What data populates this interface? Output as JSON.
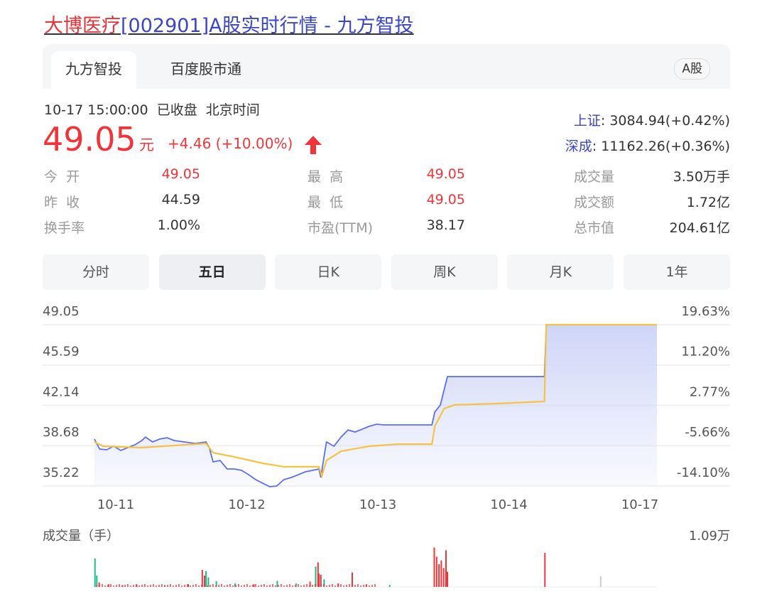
{
  "title": {
    "name": "大博医疗",
    "rest": "[002901]A股实时行情 - 九方智投"
  },
  "source_tabs": [
    {
      "label": "九方智投",
      "active": true
    },
    {
      "label": "百度股市通",
      "active": false
    }
  ],
  "market_badge": "A股",
  "quote": {
    "datetime": "10-17 15:00:00",
    "status": "已收盘",
    "timezone": "北京时间",
    "price": "49.05",
    "unit": "元",
    "change": "+4.46 (+10.00%)",
    "direction_icon": "arrow-up-icon"
  },
  "indices": [
    {
      "name": "上证",
      "value": ": 3084.94(+0.42%)"
    },
    {
      "name": "深成",
      "value": ": 11162.26(+0.36%)"
    }
  ],
  "stats": [
    [
      {
        "label": "今  开",
        "value": "49.05",
        "red": true
      },
      {
        "label": "最  高",
        "value": "49.05",
        "red": true
      },
      {
        "label": "成交量",
        "value": "3.50万手"
      }
    ],
    [
      {
        "label": "昨  收",
        "value": "44.59"
      },
      {
        "label": "最  低",
        "value": "49.05",
        "red": true
      },
      {
        "label": "成交额",
        "value": "1.72亿"
      }
    ],
    [
      {
        "label": "换手率",
        "value": "1.00%"
      },
      {
        "label": "市盈(TTM)",
        "value": "38.17"
      },
      {
        "label": "总市值",
        "value": "204.61亿"
      }
    ]
  ],
  "period_tabs": [
    {
      "label": "分时"
    },
    {
      "label": "五日",
      "active": true
    },
    {
      "label": "日K"
    },
    {
      "label": "周K"
    },
    {
      "label": "月K"
    },
    {
      "label": "1年"
    }
  ],
  "colors": {
    "price_line": "#5b6ef0",
    "avg_line": "#f5c242",
    "up": "#f0353a",
    "down": "#1fb98c",
    "fill": "#c9d1f7"
  },
  "chart_data": {
    "type": "line",
    "days": [
      "10-11",
      "10-12",
      "10-13",
      "10-14",
      "10-17"
    ],
    "y_ticks": [
      "49.05",
      "45.59",
      "42.14",
      "38.68",
      "35.22"
    ],
    "y_right_ticks": [
      "19.63%",
      "11.20%",
      "2.77%",
      "-5.66%",
      "-14.10%"
    ],
    "ylim": [
      35.22,
      49.05
    ],
    "grid": true,
    "series": [
      {
        "key": "price",
        "points": [
          [
            "10-11",
            "09:30",
            39.24
          ],
          [
            "10-11",
            "09:41",
            38.39
          ],
          [
            "10-11",
            "09:56",
            38.33
          ],
          [
            "10-11",
            "10:11",
            38.63
          ],
          [
            "10-11",
            "10:26",
            38.27
          ],
          [
            "10-11",
            "10:41",
            38.51
          ],
          [
            "10-11",
            "10:56",
            38.75
          ],
          [
            "10-11",
            "11:11",
            39.12
          ],
          [
            "10-11",
            "11:19",
            39.42
          ],
          [
            "10-11",
            "13:04",
            39.0
          ],
          [
            "10-11",
            "13:19",
            39.24
          ],
          [
            "10-11",
            "13:35",
            39.36
          ],
          [
            "10-11",
            "13:50",
            39.12
          ],
          [
            "10-11",
            "14:12",
            39.0
          ],
          [
            "10-11",
            "14:35",
            38.87
          ],
          [
            "10-11",
            "14:58",
            39.0
          ],
          [
            "10-12",
            "09:35",
            38.51
          ],
          [
            "10-12",
            "09:43",
            37.29
          ],
          [
            "10-12",
            "09:58",
            37.41
          ],
          [
            "10-12",
            "10:13",
            36.68
          ],
          [
            "10-12",
            "10:28",
            36.68
          ],
          [
            "10-12",
            "10:44",
            36.56
          ],
          [
            "10-12",
            "10:59",
            36.19
          ],
          [
            "10-12",
            "11:14",
            35.77
          ],
          [
            "10-12",
            "11:29",
            35.46
          ],
          [
            "10-12",
            "13:14",
            35.16
          ],
          [
            "10-12",
            "13:29",
            35.22
          ],
          [
            "10-12",
            "13:44",
            35.77
          ],
          [
            "10-12",
            "14:00",
            35.95
          ],
          [
            "10-12",
            "14:15",
            36.19
          ],
          [
            "10-12",
            "14:30",
            36.44
          ],
          [
            "10-12",
            "14:45",
            36.56
          ],
          [
            "10-12",
            "14:59",
            36.68
          ],
          [
            "10-13",
            "09:33",
            35.95
          ],
          [
            "10-13",
            "09:38",
            37.29
          ],
          [
            "10-13",
            "09:45",
            39.0
          ],
          [
            "10-13",
            "10:01",
            38.63
          ],
          [
            "10-13",
            "10:16",
            39.42
          ],
          [
            "10-13",
            "10:31",
            40.03
          ],
          [
            "10-13",
            "10:46",
            39.85
          ],
          [
            "10-13",
            "11:01",
            40.09
          ],
          [
            "10-13",
            "11:16",
            40.34
          ],
          [
            "10-13",
            "13:02",
            40.52
          ],
          [
            "10-13",
            "13:17",
            40.46
          ],
          [
            "10-13",
            "13:47",
            40.46
          ],
          [
            "10-13",
            "14:17",
            40.46
          ],
          [
            "10-13",
            "15:00",
            40.46
          ],
          [
            "10-14",
            "09:36",
            41.56
          ],
          [
            "10-14",
            "09:48",
            42.17
          ],
          [
            "10-14",
            "10:03",
            44.6
          ],
          [
            "10-14",
            "13:19",
            44.6
          ],
          [
            "10-14",
            "15:00",
            44.6
          ],
          [
            "10-17",
            "09:34",
            49.05
          ],
          [
            "10-17",
            "15:00",
            49.05
          ]
        ]
      },
      {
        "key": "average",
        "points": [
          [
            "10-11",
            "09:30",
            39.0
          ],
          [
            "10-11",
            "09:48",
            38.63
          ],
          [
            "10-11",
            "11:11",
            38.51
          ],
          [
            "10-11",
            "14:58",
            38.87
          ],
          [
            "10-12",
            "09:43",
            38.08
          ],
          [
            "10-12",
            "10:28",
            37.72
          ],
          [
            "10-12",
            "11:29",
            37.17
          ],
          [
            "10-12",
            "13:44",
            36.87
          ],
          [
            "10-12",
            "14:59",
            36.87
          ],
          [
            "10-13",
            "09:35",
            36.07
          ],
          [
            "10-13",
            "09:45",
            37.41
          ],
          [
            "10-13",
            "10:16",
            38.2
          ],
          [
            "10-13",
            "11:16",
            38.63
          ],
          [
            "10-13",
            "13:47",
            38.81
          ],
          [
            "10-13",
            "15:00",
            38.81
          ],
          [
            "10-14",
            "09:36",
            40.34
          ],
          [
            "10-14",
            "09:56",
            41.86
          ],
          [
            "10-14",
            "10:18",
            42.17
          ],
          [
            "10-14",
            "13:19",
            42.29
          ],
          [
            "10-14",
            "15:00",
            42.47
          ],
          [
            "10-17",
            "09:34",
            49.05
          ],
          [
            "10-17",
            "15:00",
            49.05
          ]
        ]
      }
    ],
    "volume": {
      "label": "成交量（手）",
      "max_label": "1.09万",
      "max": 10900,
      "bars": [
        [
          "10-11",
          "09:31",
          7500,
          "down"
        ],
        [
          "10-11",
          "09:35",
          3000,
          "down"
        ],
        [
          "10-11",
          "09:40",
          1200,
          "up"
        ],
        [
          "10-11",
          "10:00",
          700,
          "up"
        ],
        [
          "10-11",
          "10:30",
          500,
          "down"
        ],
        [
          "10-11",
          "11:00",
          600,
          "up"
        ],
        [
          "10-11",
          "13:30",
          500,
          "down"
        ],
        [
          "10-11",
          "14:20",
          700,
          "up"
        ],
        [
          "10-11",
          "14:50",
          4500,
          "up"
        ],
        [
          "10-11",
          "14:55",
          3000,
          "up"
        ],
        [
          "10-11",
          "14:58",
          4200,
          "down"
        ],
        [
          "10-12",
          "09:33",
          2500,
          "down"
        ],
        [
          "10-12",
          "09:50",
          1500,
          "down"
        ],
        [
          "10-12",
          "10:30",
          900,
          "down"
        ],
        [
          "10-12",
          "11:10",
          700,
          "up"
        ],
        [
          "10-12",
          "13:30",
          1600,
          "down"
        ],
        [
          "10-12",
          "14:10",
          900,
          "down"
        ],
        [
          "10-12",
          "14:40",
          1400,
          "up"
        ],
        [
          "10-12",
          "14:52",
          5400,
          "down"
        ],
        [
          "10-12",
          "14:57",
          6500,
          "up"
        ],
        [
          "10-12",
          "14:59",
          3500,
          "up"
        ],
        [
          "10-13",
          "09:33",
          3200,
          "up"
        ],
        [
          "10-13",
          "09:40",
          2000,
          "down"
        ],
        [
          "10-13",
          "10:10",
          900,
          "up"
        ],
        [
          "10-13",
          "10:40",
          3800,
          "up"
        ],
        [
          "10-13",
          "11:10",
          600,
          "up"
        ],
        [
          "10-13",
          "13:30",
          500,
          "down"
        ],
        [
          "10-14",
          "09:35",
          10400,
          "up"
        ],
        [
          "10-14",
          "09:40",
          8000,
          "up"
        ],
        [
          "10-14",
          "09:45",
          6000,
          "up"
        ],
        [
          "10-14",
          "09:50",
          7000,
          "up"
        ],
        [
          "10-14",
          "09:55",
          5000,
          "up"
        ],
        [
          "10-14",
          "10:00",
          9700,
          "up"
        ],
        [
          "10-14",
          "10:03",
          4000,
          "up"
        ],
        [
          "10-17",
          "09:31",
          9000,
          "up"
        ],
        [
          "10-17",
          "13:00",
          2800,
          "flat"
        ]
      ]
    }
  }
}
